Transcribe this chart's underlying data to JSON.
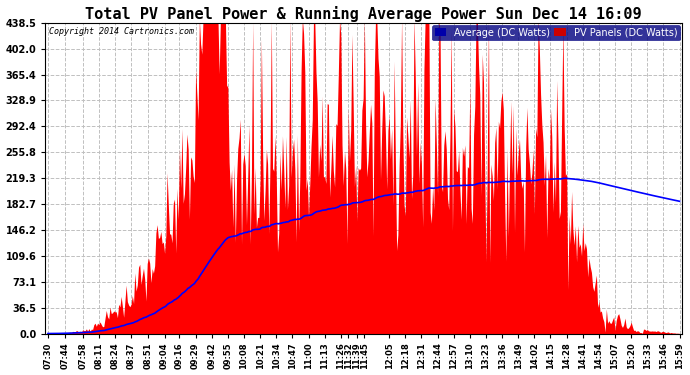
{
  "title": "Total PV Panel Power & Running Average Power Sun Dec 14 16:09",
  "copyright": "Copyright 2014 Cartronics.com",
  "legend_avg": "Average (DC Watts)",
  "legend_pv": "PV Panels (DC Watts)",
  "legend_avg_bg": "#0000aa",
  "legend_pv_bg": "#cc0000",
  "yticks": [
    0.0,
    36.5,
    73.1,
    109.6,
    146.2,
    182.7,
    219.3,
    255.8,
    292.4,
    328.9,
    365.4,
    402.0,
    438.5
  ],
  "ylim": [
    0,
    438.5
  ],
  "pv_color": "#ff0000",
  "avg_color": "#0000ff",
  "background_color": "#ffffff",
  "grid_color": "#c0c0c0",
  "title_fontsize": 11,
  "xtick_labels": [
    "07:30",
    "07:44",
    "07:58",
    "08:11",
    "08:24",
    "08:37",
    "08:51",
    "09:04",
    "09:16",
    "09:29",
    "09:42",
    "09:55",
    "10:08",
    "10:21",
    "10:34",
    "10:47",
    "11:00",
    "11:13",
    "11:26",
    "11:32",
    "11:39",
    "11:45",
    "12:05",
    "12:18",
    "12:31",
    "12:44",
    "12:57",
    "13:10",
    "13:23",
    "13:36",
    "13:49",
    "14:02",
    "14:15",
    "14:28",
    "14:41",
    "14:54",
    "15:07",
    "15:20",
    "15:33",
    "15:46",
    "15:59"
  ]
}
